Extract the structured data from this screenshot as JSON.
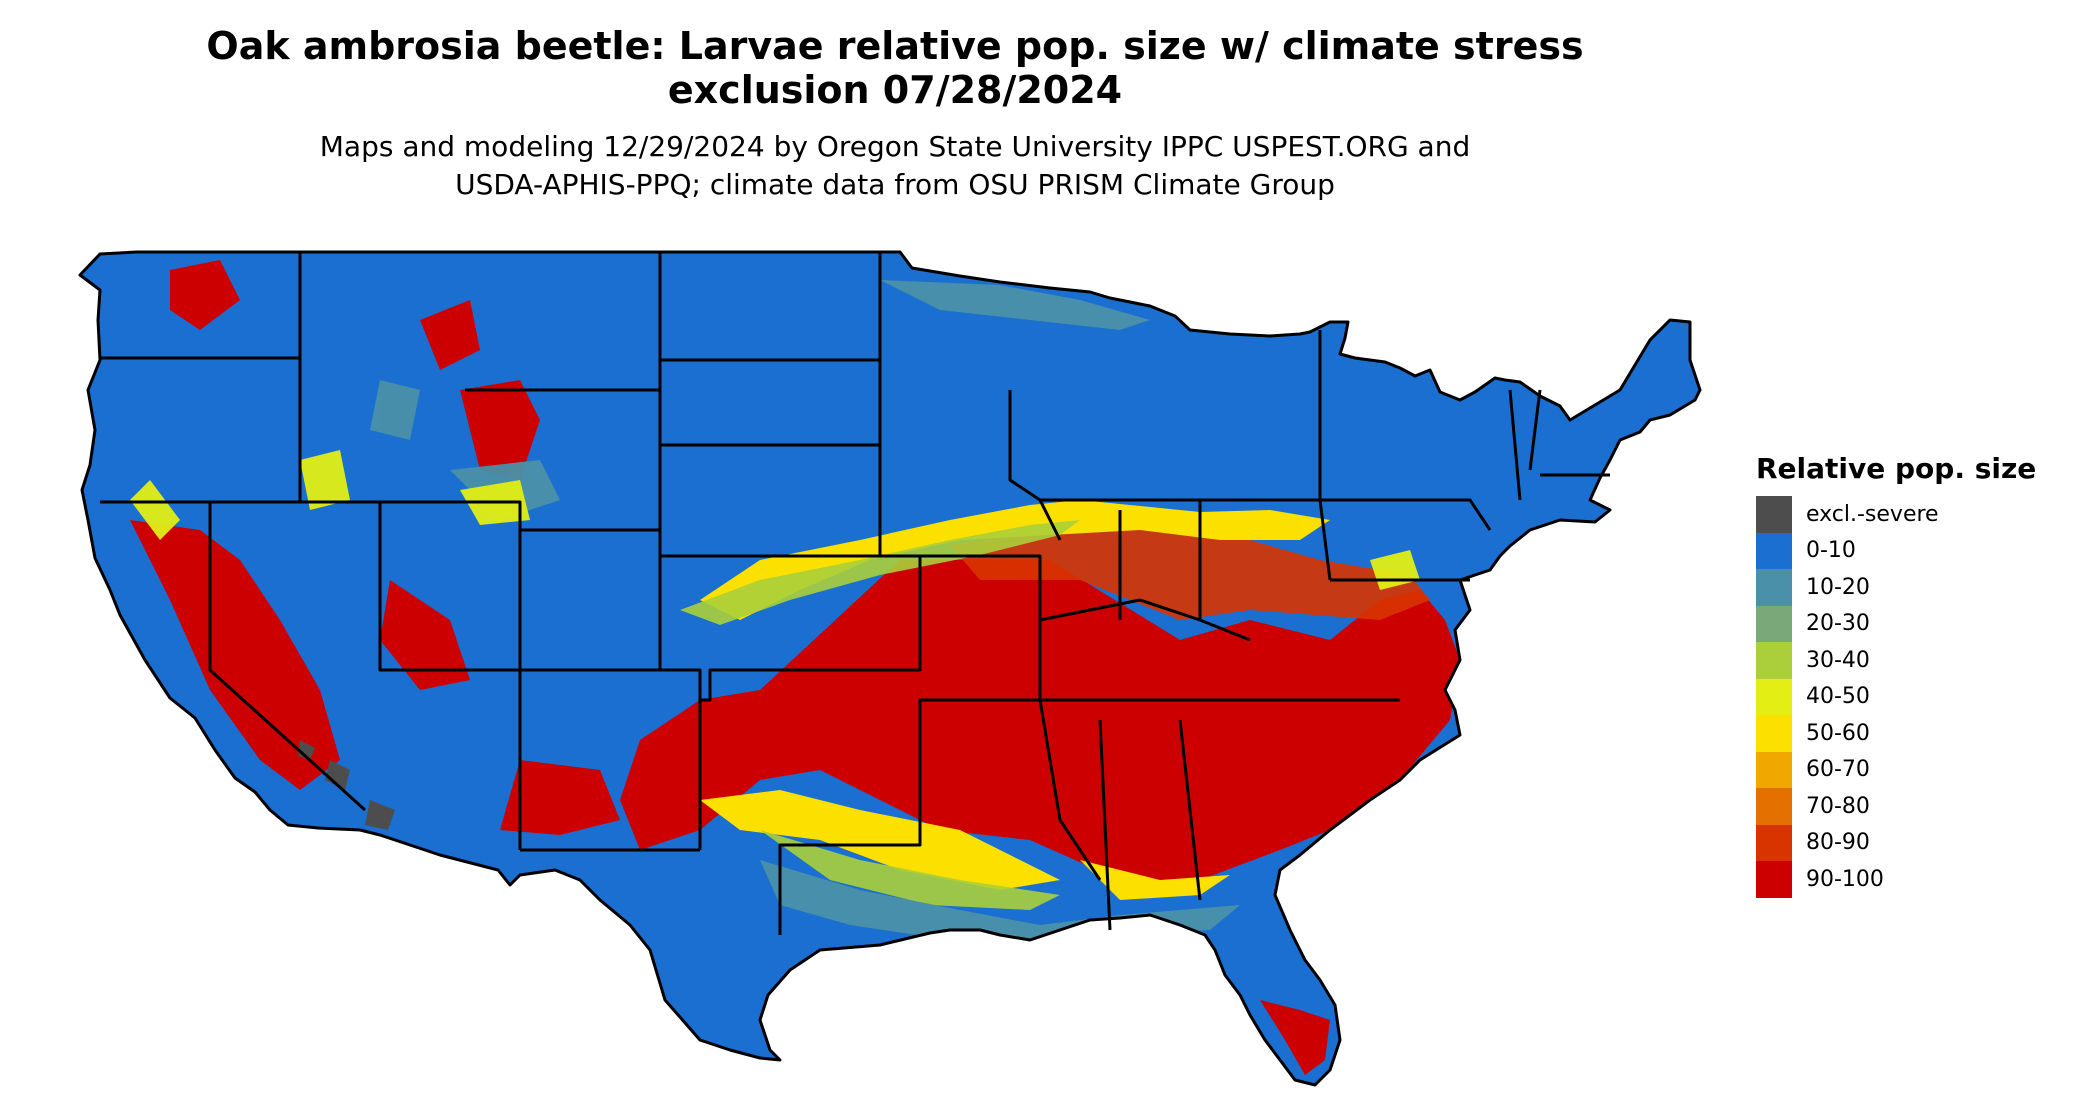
{
  "title": {
    "line1": "Oak ambrosia beetle: Larvae relative pop. size w/ climate stress",
    "line2": "exclusion 07/28/2024"
  },
  "subtitle": {
    "line1": "Maps and modeling 12/29/2024 by Oregon State University IPPC USPEST.ORG and",
    "line2": "USDA-APHIS-PPQ; climate data from OSU PRISM Climate Group"
  },
  "legend": {
    "title": "Relative pop. size",
    "items": [
      {
        "label": "excl.-severe",
        "color": "#4d4d4d"
      },
      {
        "label": "0-10",
        "color": "#1a6fd0"
      },
      {
        "label": "10-20",
        "color": "#4a90a8"
      },
      {
        "label": "20-30",
        "color": "#7aa878"
      },
      {
        "label": "30-40",
        "color": "#aacf3a"
      },
      {
        "label": "40-50",
        "color": "#e2ee14"
      },
      {
        "label": "50-60",
        "color": "#fbe000"
      },
      {
        "label": "60-70",
        "color": "#f0a800"
      },
      {
        "label": "70-80",
        "color": "#e47000"
      },
      {
        "label": "80-90",
        "color": "#d83400"
      },
      {
        "label": "90-100",
        "color": "#cc0000"
      }
    ]
  }
}
